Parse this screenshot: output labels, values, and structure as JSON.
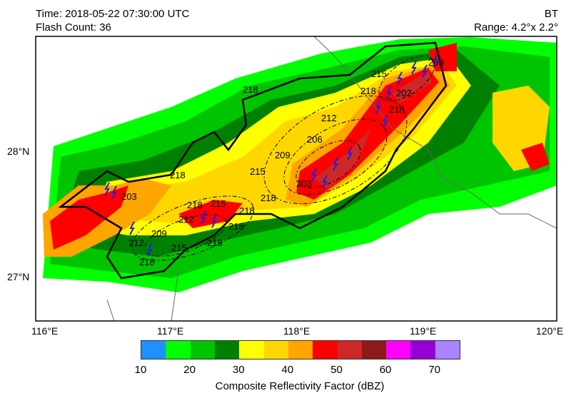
{
  "header": {
    "time": "Time: 2018-05-22 07:30:00 UTC",
    "flash_count": "Flash Count:  36",
    "product": "BT",
    "range": "Range: 4.2°x 2.2°"
  },
  "map": {
    "lon_ticks": [
      "116°E",
      "117°E",
      "118°E",
      "119°E",
      "120°E"
    ],
    "lat_ticks": [
      "28°N",
      "27°N"
    ],
    "contour_labels": [
      "218",
      "218",
      "215",
      "212",
      "209",
      "206",
      "203",
      "218",
      "215",
      "212",
      "209",
      "218",
      "218",
      "215",
      "212",
      "218",
      "218",
      "218",
      "209",
      "202",
      "215",
      "218",
      "203",
      "218"
    ],
    "lightning_icon": "lightning-bolt-icon",
    "lightning_color": "#2020e0"
  },
  "colorbar": {
    "title": "Composite Reflectivity Factor (dBZ)",
    "labels": [
      "10",
      "20",
      "30",
      "40",
      "50",
      "60",
      "70"
    ],
    "bounds": [
      10,
      15,
      20,
      25,
      30,
      35,
      40,
      45,
      50,
      55,
      60,
      65,
      70,
      75
    ],
    "colors": [
      "#1e90ff",
      "#00ff00",
      "#00c400",
      "#008000",
      "#ffff00",
      "#ffd700",
      "#ffa500",
      "#ff0000",
      "#cd2828",
      "#8b1a1a",
      "#ff00ff",
      "#9400d3",
      "#ab82ff"
    ]
  }
}
